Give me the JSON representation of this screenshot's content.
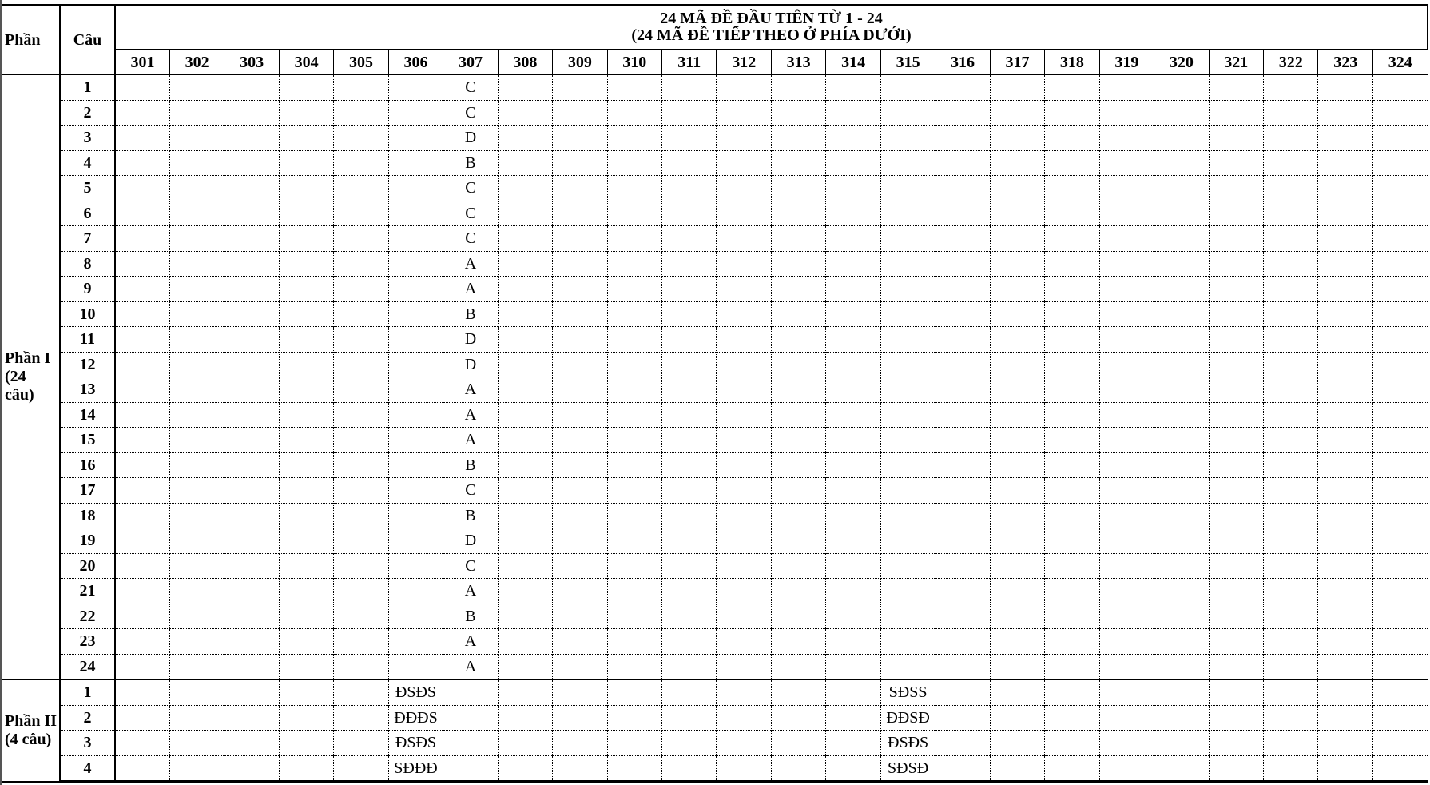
{
  "header": {
    "part_label": "Phần",
    "question_label": "Câu",
    "title_line1": "24 MÃ ĐỀ ĐẦU TIÊN TỪ 1 - 24",
    "title_line2": "(24 MÃ ĐỀ TIẾP THEO Ở PHÍA DƯỚI)",
    "codes": [
      "301",
      "302",
      "303",
      "304",
      "305",
      "306",
      "307",
      "308",
      "309",
      "310",
      "311",
      "312",
      "313",
      "314",
      "315",
      "316",
      "317",
      "318",
      "319",
      "320",
      "321",
      "322",
      "323",
      "324"
    ]
  },
  "sections": [
    {
      "label_line1": "Phần I",
      "label_line2": "(24 câu)",
      "rows": [
        {
          "q": "1",
          "answers": {
            "307": "C"
          }
        },
        {
          "q": "2",
          "answers": {
            "307": "C"
          }
        },
        {
          "q": "3",
          "answers": {
            "307": "D"
          }
        },
        {
          "q": "4",
          "answers": {
            "307": "B"
          }
        },
        {
          "q": "5",
          "answers": {
            "307": "C"
          }
        },
        {
          "q": "6",
          "answers": {
            "307": "C"
          }
        },
        {
          "q": "7",
          "answers": {
            "307": "C"
          }
        },
        {
          "q": "8",
          "answers": {
            "307": "A"
          }
        },
        {
          "q": "9",
          "answers": {
            "307": "A"
          }
        },
        {
          "q": "10",
          "answers": {
            "307": "B"
          }
        },
        {
          "q": "11",
          "answers": {
            "307": "D"
          }
        },
        {
          "q": "12",
          "answers": {
            "307": "D"
          }
        },
        {
          "q": "13",
          "answers": {
            "307": "A"
          }
        },
        {
          "q": "14",
          "answers": {
            "307": "A"
          }
        },
        {
          "q": "15",
          "answers": {
            "307": "A"
          }
        },
        {
          "q": "16",
          "answers": {
            "307": "B"
          }
        },
        {
          "q": "17",
          "answers": {
            "307": "C"
          }
        },
        {
          "q": "18",
          "answers": {
            "307": "B"
          }
        },
        {
          "q": "19",
          "answers": {
            "307": "D"
          }
        },
        {
          "q": "20",
          "answers": {
            "307": "C"
          }
        },
        {
          "q": "21",
          "answers": {
            "307": "A"
          }
        },
        {
          "q": "22",
          "answers": {
            "307": "B"
          }
        },
        {
          "q": "23",
          "answers": {
            "307": "A"
          }
        },
        {
          "q": "24",
          "answers": {
            "307": "A"
          }
        }
      ]
    },
    {
      "label_line1": "Phần II",
      "label_line2": "(4 câu)",
      "rows": [
        {
          "q": "1",
          "answers": {
            "306": "ĐSĐS",
            "315": "SĐSS"
          }
        },
        {
          "q": "2",
          "answers": {
            "306": "ĐĐĐS",
            "315": "ĐĐSĐ"
          }
        },
        {
          "q": "3",
          "answers": {
            "306": "ĐSĐS",
            "315": "ĐSĐS"
          }
        },
        {
          "q": "4",
          "answers": {
            "306": "SĐĐĐ",
            "315": "SĐSĐ"
          }
        }
      ]
    }
  ]
}
